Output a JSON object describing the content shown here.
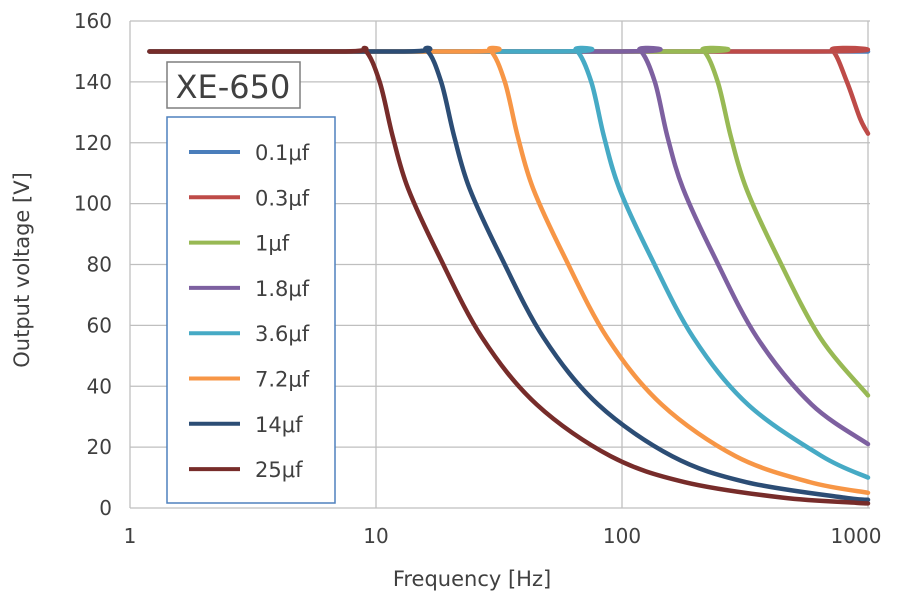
{
  "chart_data": {
    "type": "line",
    "title": "XE-650",
    "xlabel": "Frequency [Hz]",
    "ylabel": "Output voltage [V]",
    "xscale": "log",
    "xlim": [
      1,
      1000
    ],
    "ylim": [
      0,
      160
    ],
    "xticks": [
      1,
      10,
      100,
      1000
    ],
    "xtick_labels": [
      "1",
      "10",
      "100",
      "1000"
    ],
    "yticks": [
      0,
      20,
      40,
      60,
      80,
      100,
      120,
      140,
      160
    ],
    "ytick_labels": [
      "0",
      "20",
      "40",
      "60",
      "80",
      "100",
      "120",
      "140",
      "160"
    ],
    "grid": true,
    "legend_position": "left",
    "series": [
      {
        "name": "0.1μf",
        "color": "#4a7ebb",
        "x": [
          1.2,
          1000
        ],
        "y": [
          150,
          150
        ]
      },
      {
        "name": "0.3μf",
        "color": "#be4b48",
        "x": [
          1.2,
          600,
          714,
          821,
          928,
          1000
        ],
        "y": [
          150,
          150,
          150.5,
          140,
          128,
          123
        ]
      },
      {
        "name": "1μf",
        "color": "#98b954",
        "x": [
          1.2,
          177,
          213,
          245,
          277,
          320,
          426,
          639,
          1000
        ],
        "y": [
          150,
          150,
          150.5,
          140,
          122,
          105,
          83,
          56,
          37
        ]
      },
      {
        "name": "1.8μf",
        "color": "#7d60a0",
        "x": [
          1.2,
          98,
          118,
          136,
          153,
          177,
          236,
          354,
          590,
          1000
        ],
        "y": [
          150,
          150,
          150.5,
          140,
          122,
          105,
          83,
          56,
          34,
          21
        ]
      },
      {
        "name": "3.6μf",
        "color": "#46aac5",
        "x": [
          1.2,
          54,
          65,
          75,
          84.5,
          97.5,
          130,
          195,
          325,
          650,
          1000
        ],
        "y": [
          150,
          150,
          150.5,
          140,
          122,
          105,
          83,
          56,
          34,
          17,
          10
        ]
      },
      {
        "name": "7.2μf",
        "color": "#f79646",
        "x": [
          1.2,
          24,
          29,
          33.4,
          37.7,
          43.5,
          58,
          87,
          145,
          290,
          580,
          1000
        ],
        "y": [
          150,
          150,
          150.5,
          140,
          122,
          105,
          83,
          56,
          34,
          17,
          8.5,
          5
        ]
      },
      {
        "name": "14μf",
        "color": "#2c4d75",
        "x": [
          1.2,
          13,
          16,
          18.4,
          20.8,
          24,
          32,
          48,
          80,
          160,
          320,
          800,
          1000
        ],
        "y": [
          150,
          150,
          150.5,
          140,
          122,
          105,
          83,
          56,
          34,
          17,
          8.5,
          3.4,
          2.7
        ]
      },
      {
        "name": "25μf",
        "color": "#772c2a",
        "x": [
          1.2,
          7.5,
          9,
          10.35,
          11.7,
          13.5,
          18,
          27,
          45,
          90,
          180,
          450,
          900,
          1000
        ],
        "y": [
          150,
          150,
          150.5,
          140,
          122,
          105,
          83,
          56,
          34,
          17,
          8.5,
          3.4,
          1.7,
          1.5
        ]
      }
    ]
  }
}
